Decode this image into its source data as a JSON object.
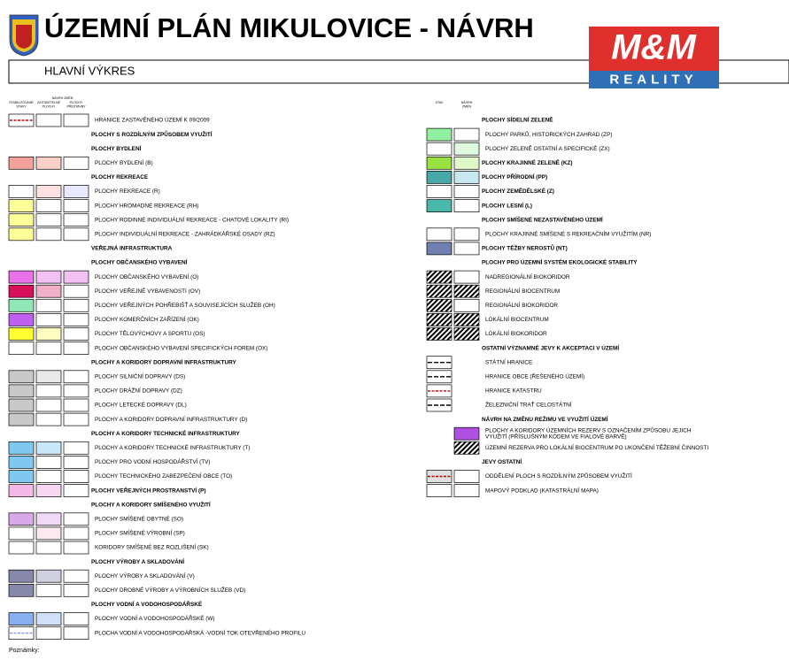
{
  "header": {
    "title": "ÚZEMNÍ PLÁN MIKULOVICE - NÁVRH",
    "subtitle": "HLAVNÍ VÝKRES",
    "logo": {
      "brand": "M&M",
      "tagline": "REALITY"
    }
  },
  "left": {
    "column_group": "NÁVRH ZMĚN",
    "column_headers": [
      [
        "STABILIZOVANÉ",
        "STAVY"
      ],
      [
        "ZASTAVITELNÉ",
        "PLOCHY"
      ],
      [
        "PLOCHY",
        "PŘESTAVBY"
      ]
    ],
    "rows": [
      {
        "label": "HRANICE ZASTAVĚNÉHO ÚZEMÍ K 09/2009",
        "fills": [
          null,
          null,
          null
        ],
        "line": "#c00000"
      },
      {
        "label": "PLOCHY S ROZDÍLNÝM ZPŮSOBEM VYUŽITÍ",
        "heading": true
      },
      {
        "label": "PLOCHY BYDLENÍ",
        "heading": true
      },
      {
        "label": "PLOCHY BYDLENÍ (B)",
        "fills": [
          "#f4a09a",
          "#f9cfc8",
          null
        ]
      },
      {
        "label": "PLOCHY REKREACE",
        "heading": true
      },
      {
        "label": "PLOCHY REKREACE (R)",
        "fills": [
          null,
          "#fde0e0",
          "#e8e8ff"
        ]
      },
      {
        "label": "PLOCHY HROMADNÉ REKREACE (RH)",
        "fills": [
          "#ffff99",
          null,
          null
        ]
      },
      {
        "label": "PLOCHY RODINNÉ INDIVIDUÁLNÍ REKREACE - CHATOVÉ LOKALITY (RI)",
        "fills": [
          "#ffff99",
          null,
          null
        ]
      },
      {
        "label": "PLOCHY INDIVIDUÁLNÍ REKREACE - ZAHRÁDKÁŘSKÉ OSADY (RZ)",
        "fills": [
          "#ffff99",
          null,
          null
        ]
      },
      {
        "label": "VEŘEJNÁ INFRASTRUKTURA",
        "heading": true
      },
      {
        "label": "PLOCHY OBČANSKÉHO VYBAVENÍ",
        "heading": true
      },
      {
        "label": "PLOCHY OBČANSKÉHO VYBAVENÍ (O)",
        "fills": [
          "#e870e8",
          "#f3c0f3",
          "#f3c0f3"
        ]
      },
      {
        "label": "PLOCHY VEŘEJNÉ VYBAVENOSTI (OV)",
        "fills": [
          "#d8105a",
          "#f0b0c8",
          null
        ]
      },
      {
        "label": "PLOCHY VEŘEJNÝCH POHŘEBIŠŤ A SOUVISEJÍCÍCH SLUŽEB (OH)",
        "fills": [
          "#90e8b8",
          null,
          null
        ]
      },
      {
        "label": "PLOCHY KOMERČNÍCH ZAŘÍZENÍ (OK)",
        "fills": [
          "#c060f0",
          null,
          null
        ]
      },
      {
        "label": "PLOCHY TĚLOVÝCHOVY A SPORTU (OS)",
        "fills": [
          "#ffff30",
          "#fffcc0",
          null
        ]
      },
      {
        "label": "PLOCHY OBČANSKÉHO VYBAVENÍ SPECIFICKÝCH FOREM (OX)",
        "fills": [
          null,
          null,
          null
        ]
      },
      {
        "label": "PLOCHY A KORIDORY DOPRAVNÍ INFRASTRUKTURY",
        "heading": true
      },
      {
        "label": "PLOCHY SILNIČNÍ DOPRAVY (DS)",
        "fills": [
          "#c8c8c8",
          "#e8e8e8",
          null
        ]
      },
      {
        "label": "PLOCHY DRÁŽNÍ DOPRAVY (DZ)",
        "fills": [
          "#c8c8c8",
          null,
          null
        ]
      },
      {
        "label": "PLOCHY LETECKÉ DOPRAVY (DL)",
        "fills": [
          "#c8c8c8",
          null,
          null
        ]
      },
      {
        "label": "PLOCHY A KORIDORY DOPRAVNÍ INFRASTRUKTURY (D)",
        "fills": [
          "#c8c8c8",
          null,
          null
        ]
      },
      {
        "label": "PLOCHY A KORIDORY TECHNICKÉ INFRASTRUKTURY",
        "heading": true
      },
      {
        "label": "PLOCHY A KORIDORY TECHNICKÉ INFRASTRUKTURY (T)",
        "fills": [
          "#80c8f0",
          "#c8e8f8",
          null
        ]
      },
      {
        "label": "PLOCHY PRO VODNÍ HOSPODÁŘSTVÍ (TV)",
        "fills": [
          "#80c8f0",
          null,
          null
        ]
      },
      {
        "label": "PLOCHY TECHNICKÉHO ZABEZPEČENÍ OBCE (TO)",
        "fills": [
          "#80c8f0",
          null,
          null
        ]
      },
      {
        "label": "PLOCHY VEŘEJNÝCH PROSTRANSTVÍ (P)",
        "bold": true,
        "fills": [
          "#f4b8e8",
          "#f8d8f0",
          null
        ]
      },
      {
        "label": "PLOCHY A KORIDORY SMÍŠENÉHO VYUŽITÍ",
        "heading": true
      },
      {
        "label": "PLOCHY SMÍŠENÉ OBYTNÉ (SO)",
        "fills": [
          "#d8a8e8",
          "#f0d8f8",
          null
        ]
      },
      {
        "label": "PLOCHY SMÍŠENÉ VÝROBNÍ (SP)",
        "fills": [
          null,
          "#fde8f0",
          null
        ]
      },
      {
        "label": "KORIDORY SMÍŠENÉ BEZ ROZLIŠENÍ (SK)",
        "fills": [
          null,
          null,
          null
        ]
      },
      {
        "label": "PLOCHY VÝROBY A SKLADOVÁNÍ",
        "heading": true
      },
      {
        "label": "PLOCHY VÝROBY A SKLADOVÁNÍ (V)",
        "fills": [
          "#8888aa",
          "#d0d0e0",
          null
        ]
      },
      {
        "label": "PLOCHY DROBNÉ VÝROBY A VÝROBNÍCH SLUŽEB (VD)",
        "fills": [
          "#8888aa",
          null,
          null
        ]
      },
      {
        "label": "PLOCHY VODNÍ A VODOHOSPODÁŘSKÉ",
        "heading": true
      },
      {
        "label": "PLOCHY VODNÍ A VODOHOSPODÁŘSKÉ (W)",
        "fills": [
          "#88b0f0",
          "#d0e0f8",
          null
        ]
      },
      {
        "label": "PLOCHA VODNÍ A VODOHOSPODÁŘSKÁ -VODNÍ TOK OTEVŘENÉHO PROFILU",
        "fills": [
          null,
          null,
          null
        ],
        "line": "#8888ff"
      }
    ]
  },
  "right": {
    "column_headers": [
      [
        "STAV"
      ],
      [
        "NÁVRH",
        "ZMĚN"
      ]
    ],
    "rows": [
      {
        "label": "PLOCHY SÍDELNÍ ZELENĚ",
        "heading": true
      },
      {
        "label": "PLOCHY PARKŮ, HISTORICKÝCH ZAHRAD (ZP)",
        "fills": [
          "#90f0a0",
          null
        ]
      },
      {
        "label": "PLOCHY ZELENĚ OSTATNÍ A SPECIFICKÉ (ZX)",
        "fills": [
          null,
          "#e0f8e0"
        ]
      },
      {
        "label": "PLOCHY KRAJINNÉ ZELENĚ (KZ)",
        "bold": true,
        "fills": [
          "#98e040",
          "#e0f8c8"
        ]
      },
      {
        "label": "PLOCHY PŘÍRODNÍ (PP)",
        "bold": true,
        "fills": [
          "#48a8a8",
          "#c8e8f0"
        ]
      },
      {
        "label": "PLOCHY ZEMĚDĚLSKÉ (Z)",
        "bold": true,
        "fills": [
          null,
          null
        ]
      },
      {
        "label": "PLOCHY LESNÍ (L)",
        "bold": true,
        "fills": [
          "#48b8a8",
          null
        ]
      },
      {
        "label": "PLOCHY SMÍŠENÉ NEZASTAVĚNÉHO ÚZEMÍ",
        "heading": true
      },
      {
        "label": "PLOCHY KRAJINNÉ SMÍŠENÉ S REKREAČNÍM VYUŽITÍM (NR)",
        "fills": [
          null,
          null
        ]
      },
      {
        "label": "PLOCHY TĚŽBY NEROSTŮ (NT)",
        "bold": true,
        "fills": [
          "#7080b0",
          null
        ]
      },
      {
        "label": "PLOCHY PRO ÚZEMNÍ SYSTÉM EKOLOGICKÉ STABILITY",
        "heading": true
      },
      {
        "label": "NADREGIONÁLNÍ BIOKORIDOR",
        "hatched": true,
        "fills": [
          "#5aa04a",
          null
        ]
      },
      {
        "label": "REGIONÁLNÍ BIOCENTRUM",
        "hatched": true,
        "fills": [
          "#5aa04a",
          "#d04040"
        ]
      },
      {
        "label": "REGIONÁLNÍ BIOKORIDOR",
        "hatched": true,
        "fills": [
          "#5aa04a",
          null
        ]
      },
      {
        "label": "LOKÁLNÍ BIOCENTRUM",
        "hatched": true,
        "fills": [
          "#5aa04a",
          "#d04040"
        ]
      },
      {
        "label": "LOKÁLNÍ BIOKORIDOR",
        "hatched": true,
        "fills": [
          "#5aa04a",
          "#d04040"
        ]
      },
      {
        "label": "OSTATNÍ VÝZNAMNÉ JEVY K AKCEPTACI V ÚZEMÍ",
        "heading": true
      },
      {
        "label": "STÁTNÍ HRANICE",
        "fills": [
          null
        ],
        "line": "#000000"
      },
      {
        "label": "HRANICE OBCE (ŘEŠENÉHO ÚZEMÍ)",
        "fills": [
          null
        ],
        "line": "#000000"
      },
      {
        "label": "HRANICE KATASTRU",
        "fills": [
          null
        ],
        "line": "#c00000"
      },
      {
        "label": "ŽELEZNIČNÍ TRAŤ CELOSTÁTNÍ",
        "fills": [
          null
        ],
        "line": "#000000"
      },
      {
        "label": "NÁVRH NA ZMĚNU REŽIMU VE VYUŽITÍ ÚZEMÍ",
        "heading": true
      },
      {
        "lines": [
          "PLOCHY A KORIDORY ÚZEMNÍCH REZERV S OZNAČENÍM ZPŮSOBU JEJICH",
          "VYUŽITÍ (PŘÍSLUŠNÝM KÓDEM VE FIALOVÉ BARVĚ)"
        ],
        "fills": [
          false,
          "#b050e0"
        ]
      },
      {
        "label": "ÚZEMNÍ REZERVA PRO LOKÁLNÍ BIOCENTRUM PO UKONČENÍ TĚŽEBNÍ ČINNOSTI",
        "hatched": true,
        "fills": [
          false,
          "#c8a040"
        ]
      },
      {
        "label": "JEVY OSTATNÍ",
        "heading": true
      },
      {
        "label": "ODDĚLENÍ PLOCH S ROZDÍLNÝM ZPŮSOBEM VYUŽITÍ",
        "fills": [
          "#e0e0e0",
          null
        ],
        "line": "#c00000"
      },
      {
        "label": "MAPOVÝ PODKLAD (KATASTRÁLNÍ MAPA)",
        "fills": [
          null,
          null
        ]
      }
    ]
  },
  "footer": {
    "notes": "Poznámky:"
  }
}
